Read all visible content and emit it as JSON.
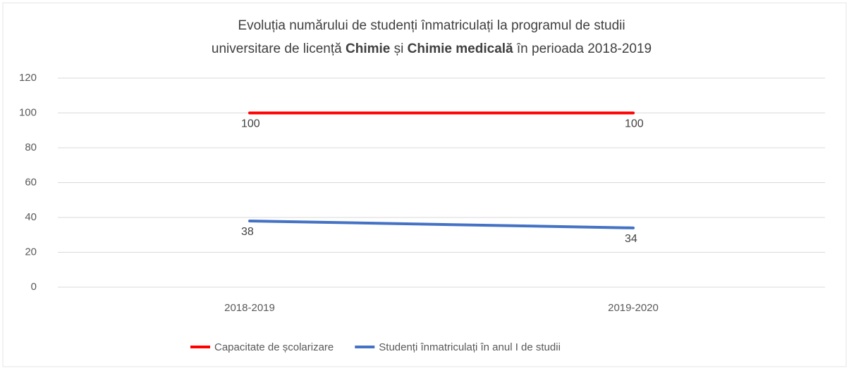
{
  "chart_data": {
    "type": "line",
    "title": [
      "Evoluția numărului de studenți înmatriculați la programul de studii",
      "universitare de licență",
      "Chimie",
      "și",
      "Chimie medicală",
      "în perioada 2018-2019"
    ],
    "categories": [
      "2018-2019",
      "2019-2020"
    ],
    "series": [
      {
        "name": "Capacitate de școlarizare",
        "color": "#ff0000",
        "values": [
          100,
          100
        ]
      },
      {
        "name": "Studenți înmatriculați în anul I de studii",
        "color": "#4472c4",
        "values": [
          38,
          34
        ]
      }
    ],
    "ylim": [
      0,
      120
    ],
    "yticks": [
      0,
      20,
      40,
      60,
      80,
      100,
      120
    ],
    "grid": true,
    "legend": "bottom"
  }
}
